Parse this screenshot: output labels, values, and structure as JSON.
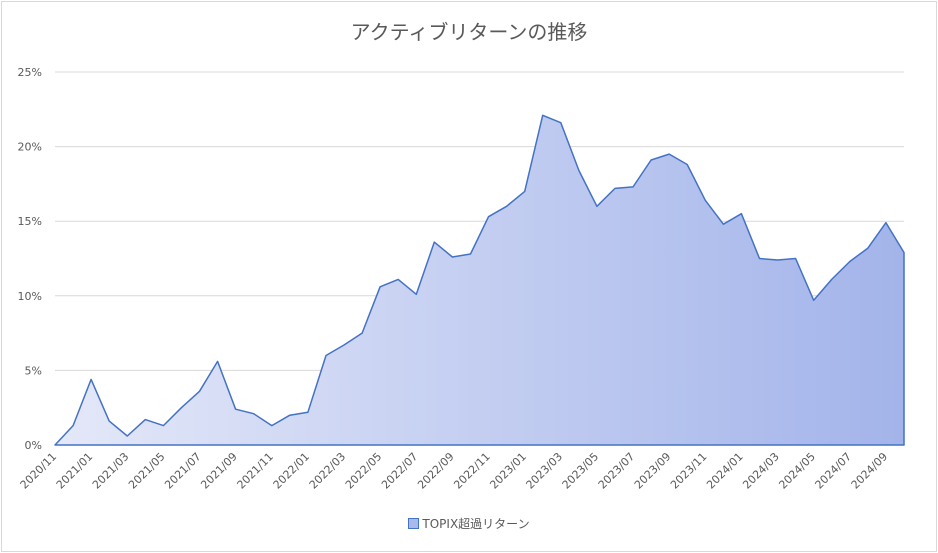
{
  "chart_data": {
    "type": "area",
    "title": "アクティブリターンの推移",
    "xlabel": "",
    "ylabel": "",
    "legend_position": "bottom",
    "grid": true,
    "ylim": [
      0,
      25
    ],
    "y_ticks": [
      "0%",
      "5%",
      "10%",
      "15%",
      "20%",
      "25%"
    ],
    "y_tick_values": [
      0,
      5,
      10,
      15,
      20,
      25
    ],
    "x": [
      "2020/11",
      "2020/12",
      "2021/01",
      "2021/02",
      "2021/03",
      "2021/04",
      "2021/05",
      "2021/06",
      "2021/07",
      "2021/08",
      "2021/09",
      "2021/10",
      "2021/11",
      "2021/12",
      "2022/01",
      "2022/02",
      "2022/03",
      "2022/04",
      "2022/05",
      "2022/06",
      "2022/07",
      "2022/08",
      "2022/09",
      "2022/10",
      "2022/11",
      "2022/12",
      "2023/01",
      "2023/02",
      "2023/03",
      "2023/04",
      "2023/05",
      "2023/06",
      "2023/07",
      "2023/08",
      "2023/09",
      "2023/10",
      "2023/11",
      "2023/12",
      "2024/01",
      "2024/02",
      "2024/03",
      "2024/04",
      "2024/05",
      "2024/06",
      "2024/07",
      "2024/08",
      "2024/09",
      "2024/10"
    ],
    "x_tick_labels": [
      "2020/11",
      "2021/01",
      "2021/03",
      "2021/05",
      "2021/07",
      "2021/09",
      "2021/11",
      "2022/01",
      "2022/03",
      "2022/05",
      "2022/07",
      "2022/09",
      "2022/11",
      "2023/01",
      "2023/03",
      "2023/05",
      "2023/07",
      "2023/09",
      "2023/11",
      "2024/01",
      "2024/03",
      "2024/05",
      "2024/07",
      "2024/09"
    ],
    "series": [
      {
        "name": "TOPIX超過リターン",
        "values": [
          0.0,
          1.3,
          4.4,
          1.6,
          0.6,
          1.7,
          1.3,
          2.5,
          3.6,
          5.6,
          2.4,
          2.1,
          1.3,
          2.0,
          2.2,
          6.0,
          6.7,
          7.5,
          10.6,
          11.1,
          10.1,
          13.6,
          12.6,
          12.8,
          15.3,
          16.0,
          17.0,
          22.1,
          21.6,
          18.4,
          16.0,
          17.2,
          17.3,
          19.1,
          19.5,
          18.8,
          16.4,
          14.8,
          15.5,
          12.5,
          12.4,
          12.5,
          9.7,
          11.1,
          12.3,
          13.2,
          14.9,
          12.9
        ]
      }
    ],
    "colors": {
      "line": "#4472c4",
      "fill_start": "#e4e8f8",
      "fill_end": "#a3b4ea",
      "grid": "#d9d9d9",
      "text": "#595959"
    }
  }
}
